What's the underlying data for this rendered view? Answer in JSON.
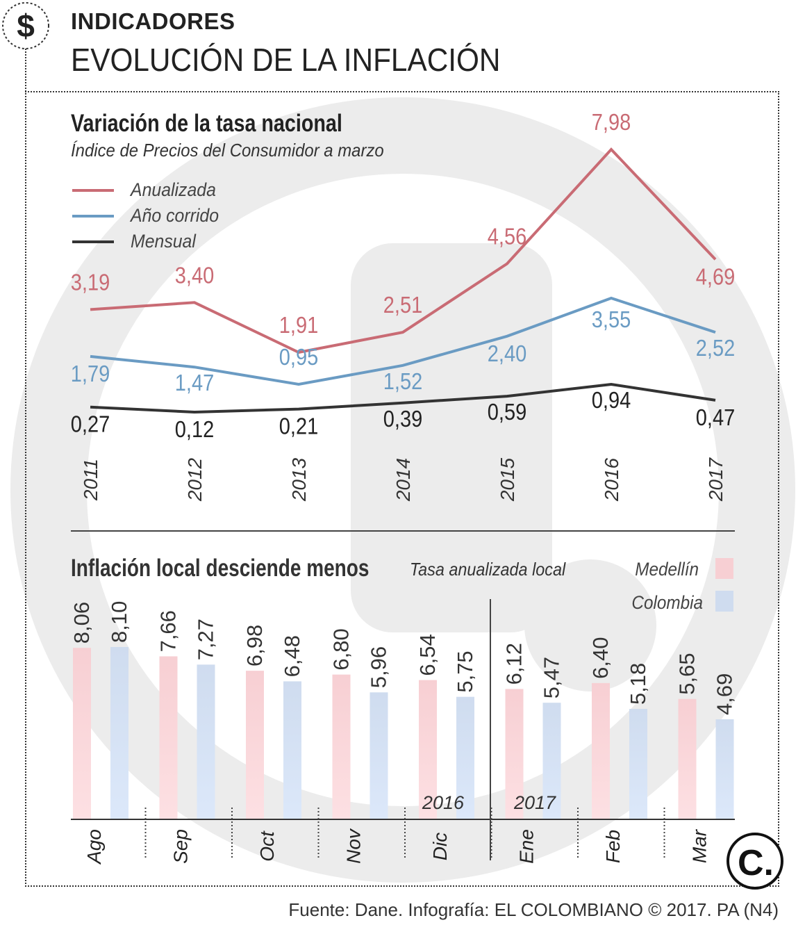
{
  "header": {
    "kicker": "INDICADORES",
    "title": "EVOLUCIÓN DE LA INFLACIÓN",
    "icon": "dollar-icon"
  },
  "colors": {
    "anualizada": "#c96b74",
    "ano_corrido": "#6a9bc3",
    "mensual": "#333333",
    "medellin": "#f7cfd3",
    "colombia": "#cfdcef",
    "watermark": "#ececec"
  },
  "chart_data": [
    {
      "type": "line",
      "title": "Variación de la tasa nacional",
      "subtitle": "Índice de Precios del Consumidor a marzo",
      "x": [
        "2011",
        "2012",
        "2013",
        "2014",
        "2015",
        "2016",
        "2017"
      ],
      "series": [
        {
          "name": "Anualizada",
          "values": [
            3.19,
            3.4,
            1.91,
            2.51,
            4.56,
            7.98,
            4.69
          ],
          "labels": [
            "3,19",
            "3,40",
            "1,91",
            "2,51",
            "4,56",
            "7,98",
            "4,69"
          ]
        },
        {
          "name": "Año corrido",
          "values": [
            1.79,
            1.47,
            0.95,
            1.52,
            2.4,
            3.55,
            2.52
          ],
          "labels": [
            "1,79",
            "1,47",
            "0,95",
            "1,52",
            "2,40",
            "3,55",
            "2,52"
          ]
        },
        {
          "name": "Mensual",
          "values": [
            0.27,
            0.12,
            0.21,
            0.39,
            0.59,
            0.94,
            0.47
          ],
          "labels": [
            "0,27",
            "0,12",
            "0,21",
            "0,39",
            "0,59",
            "0,94",
            "0,47"
          ]
        }
      ],
      "legend_position": "top-left",
      "grid": false
    },
    {
      "type": "bar",
      "title": "Inflación local desciende menos",
      "subtitle": "Tasa anualizada local",
      "categories": [
        "Ago",
        "Sep",
        "Oct",
        "Nov",
        "Dic",
        "Ene",
        "Feb",
        "Mar"
      ],
      "year_labels": [
        "2016",
        "2017"
      ],
      "series": [
        {
          "name": "Medellín",
          "values": [
            8.06,
            7.66,
            6.98,
            6.8,
            6.54,
            6.12,
            6.4,
            5.65
          ],
          "labels": [
            "8,06",
            "7,66",
            "6,98",
            "6,80",
            "6,54",
            "6,12",
            "6,40",
            "5,65"
          ]
        },
        {
          "name": "Colombia",
          "values": [
            8.1,
            7.27,
            6.48,
            5.96,
            5.75,
            5.47,
            5.18,
            4.69
          ],
          "labels": [
            "8,10",
            "7,27",
            "6,48",
            "5,96",
            "5,75",
            "5,47",
            "5,18",
            "4,69"
          ]
        }
      ],
      "ylim": [
        0,
        8.1
      ],
      "legend_position": "top-right"
    }
  ],
  "footer": {
    "source": "Fuente: Dane. Infografía: EL COLOMBIANO © 2017. PA (N4)",
    "logo_letter": "C."
  }
}
